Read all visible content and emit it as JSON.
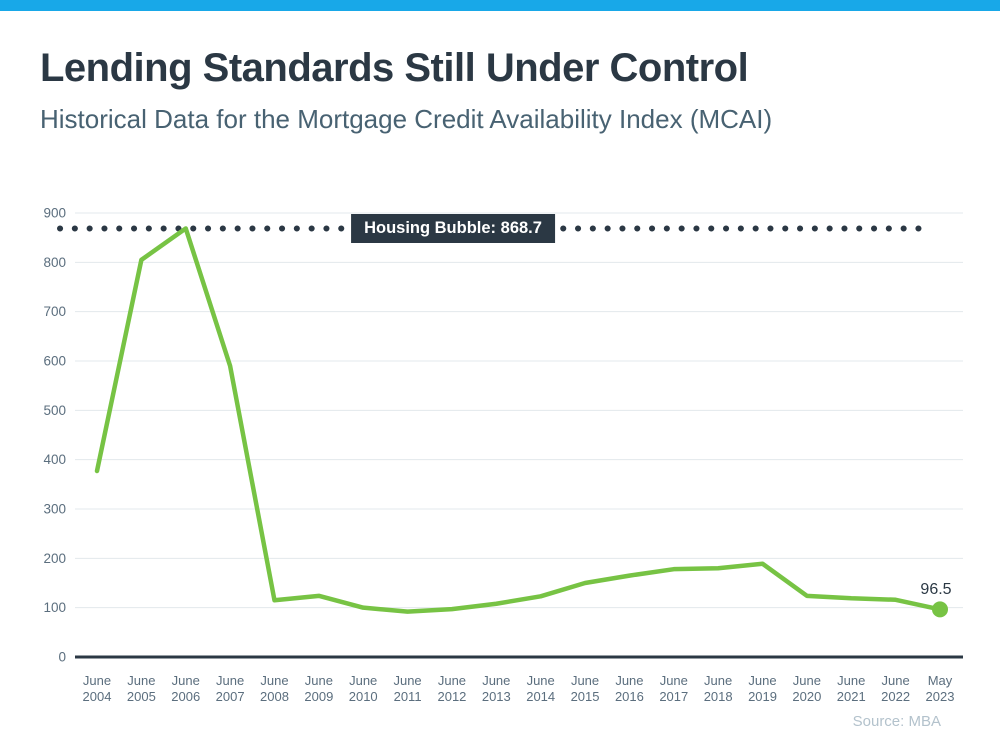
{
  "header": {
    "title": "Lending Standards Still Under Control",
    "subtitle": "Historical Data for the Mortgage Credit Availability Index (MCAI)"
  },
  "source": "Source: MBA",
  "colors": {
    "accent_bar": "#18a8e8",
    "line": "#77c344",
    "dark": "#2b3844",
    "grid": "#e3e8ec",
    "axis_text": "#5b6e7e",
    "subtitle_text": "#486272",
    "source_text": "#b3c2cc"
  },
  "chart_data": {
    "type": "line",
    "title": "Lending Standards Still Under Control",
    "subtitle": "Historical Data for the Mortgage Credit Availability Index (MCAI)",
    "categories": [
      "June 2004",
      "June 2005",
      "June 2006",
      "June 2007",
      "June 2008",
      "June 2009",
      "June 2010",
      "June 2011",
      "June 2012",
      "June 2013",
      "June 2014",
      "June 2015",
      "June 2016",
      "June 2017",
      "June 2018",
      "June 2019",
      "June 2020",
      "June 2021",
      "June 2022",
      "May 2023"
    ],
    "series": [
      {
        "name": "Mortgage Credit Availability Index (MCAI)",
        "values": [
          377,
          805,
          868.7,
          590,
          115,
          124,
          100,
          92,
          97,
          108,
          123,
          150,
          165,
          178,
          180,
          189,
          124,
          119,
          116,
          96.5
        ]
      }
    ],
    "ylim": [
      0,
      900
    ],
    "yticks": [
      0,
      100,
      200,
      300,
      400,
      500,
      600,
      700,
      800,
      900
    ],
    "grid": true,
    "legend": false,
    "threshold": {
      "value": 868.7,
      "label": "Housing Bubble: 868.7"
    },
    "last_point_label": "96.5",
    "source_note": "Source: MBA"
  }
}
